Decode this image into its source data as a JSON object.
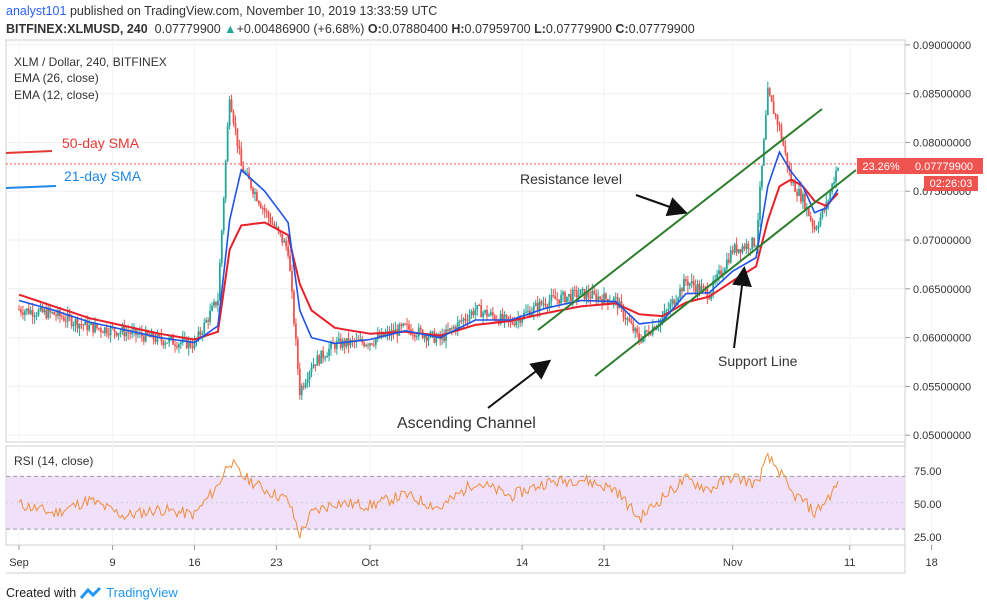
{
  "header": {
    "author": "analyst101",
    "published": "published on TradingView.com, November 10, 2019 13:33:59 UTC",
    "symbol": "BITFINEX:XLMUSD, 240",
    "last": "0.07779900",
    "change": "+0.00486900 (+6.68%)",
    "o_label": "O:",
    "o": "0.07880400",
    "h_label": "H:",
    "h": "0.07959700",
    "l_label": "L:",
    "l": "0.07779900",
    "c_label": "C:",
    "c": "0.07779900"
  },
  "legend": {
    "title": "XLM / Dollar, 240, BITFINEX",
    "ema1": "EMA (26, close)",
    "ema2": "EMA (12, close)"
  },
  "annotations": {
    "sma50": "50-day SMA",
    "sma21": "21-day SMA",
    "resistance": "Resistance level",
    "support": "Support Line",
    "channel": "Ascending Channel"
  },
  "price_tag": {
    "percent": "23.26%",
    "price": "0.07779900",
    "timer": "02:26:03"
  },
  "rsi": {
    "label": "RSI (14, close)",
    "ticks": [
      "75.00",
      "50.00",
      "25.00"
    ],
    "upper": 70,
    "lower": 30
  },
  "footer": {
    "created_with": "Created with",
    "brand": "TradingView"
  },
  "colors": {
    "up": "#26a69a",
    "down": "#ef5350",
    "ema_red": "#e8202a",
    "ema_blue": "#1e53e5",
    "rsi_line": "#ef8d3b",
    "rsi_band": "#f0e0fa",
    "channel": "#2d7d2d",
    "sma50": "#e53935",
    "sma21": "#1e88e5"
  },
  "chart_data": {
    "type": "candlestick",
    "title": "XLM / Dollar, 240, BITFINEX",
    "y_ticks": [
      "0.09000000",
      "0.08500000",
      "0.08000000",
      "0.07500000",
      "0.07000000",
      "0.06500000",
      "0.06000000",
      "0.05500000",
      "0.05000000"
    ],
    "ylim": [
      0.0493,
      0.0905
    ],
    "x_ticks": [
      "Sep",
      "9",
      "16",
      "23",
      "Oct",
      "14",
      "21",
      "Nov",
      "11",
      "18"
    ],
    "x": [
      "Sep 1",
      "Sep 4",
      "Sep 7",
      "Sep 10",
      "Sep 13",
      "Sep 16",
      "Sep 18",
      "Sep 19",
      "Sep 20",
      "Sep 22",
      "Sep 24",
      "Sep 25",
      "Sep 26",
      "Sep 28",
      "Oct 1",
      "Oct 4",
      "Oct 7",
      "Oct 10",
      "Oct 13",
      "Oct 16",
      "Oct 19",
      "Oct 22",
      "Oct 24",
      "Oct 26",
      "Oct 28",
      "Oct 30",
      "Nov 1",
      "Nov 3",
      "Nov 4",
      "Nov 5",
      "Nov 6",
      "Nov 7",
      "Nov 8",
      "Nov 9",
      "Nov 10"
    ],
    "close": [
      0.0629,
      0.0624,
      0.0611,
      0.0606,
      0.0598,
      0.0593,
      0.064,
      0.085,
      0.0775,
      0.073,
      0.069,
      0.0545,
      0.0572,
      0.0593,
      0.0596,
      0.061,
      0.0598,
      0.0629,
      0.0615,
      0.0637,
      0.0645,
      0.0638,
      0.0598,
      0.062,
      0.0658,
      0.0645,
      0.069,
      0.0698,
      0.085,
      0.0815,
      0.076,
      0.0742,
      0.0712,
      0.0735,
      0.0778
    ],
    "ema_26": [
      0.0644,
      0.0632,
      0.062,
      0.0612,
      0.0604,
      0.0598,
      0.0606,
      0.069,
      0.0715,
      0.0718,
      0.0705,
      0.0655,
      0.0628,
      0.061,
      0.0604,
      0.0606,
      0.0602,
      0.0613,
      0.0617,
      0.0625,
      0.0632,
      0.0635,
      0.0624,
      0.0622,
      0.0636,
      0.0642,
      0.0658,
      0.0673,
      0.072,
      0.0755,
      0.0762,
      0.0755,
      0.074,
      0.0735,
      0.0748
    ],
    "ema_12": [
      0.0638,
      0.0628,
      0.0616,
      0.0608,
      0.06,
      0.0595,
      0.0612,
      0.072,
      0.0772,
      0.075,
      0.0718,
      0.0628,
      0.06,
      0.0594,
      0.0598,
      0.0607,
      0.06,
      0.0618,
      0.0618,
      0.063,
      0.0638,
      0.0637,
      0.0614,
      0.0617,
      0.0645,
      0.0646,
      0.0668,
      0.0682,
      0.0755,
      0.079,
      0.077,
      0.0755,
      0.0728,
      0.0733,
      0.0752
    ],
    "rsi_x": [
      "Sep 1",
      "Sep 4",
      "Sep 7",
      "Sep 10",
      "Sep 13",
      "Sep 16",
      "Sep 18",
      "Sep 19",
      "Sep 20",
      "Sep 22",
      "Sep 24",
      "Sep 25",
      "Sep 26",
      "Sep 28",
      "Oct 1",
      "Oct 4",
      "Oct 7",
      "Oct 10",
      "Oct 13",
      "Oct 16",
      "Oct 19",
      "Oct 22",
      "Oct 24",
      "Oct 26",
      "Oct 28",
      "Oct 30",
      "Nov 1",
      "Nov 3",
      "Nov 4",
      "Nov 5",
      "Nov 6",
      "Nov 7",
      "Nov 8",
      "Nov 9",
      "Nov 10"
    ],
    "rsi_values": [
      49,
      42,
      52,
      40,
      45,
      41,
      63,
      82,
      71,
      60,
      52,
      26,
      42,
      50,
      48,
      56,
      46,
      66,
      55,
      65,
      68,
      60,
      38,
      54,
      68,
      60,
      70,
      64,
      84,
      74,
      57,
      52,
      42,
      52,
      64
    ],
    "rsi_ylim": [
      18,
      93
    ]
  }
}
